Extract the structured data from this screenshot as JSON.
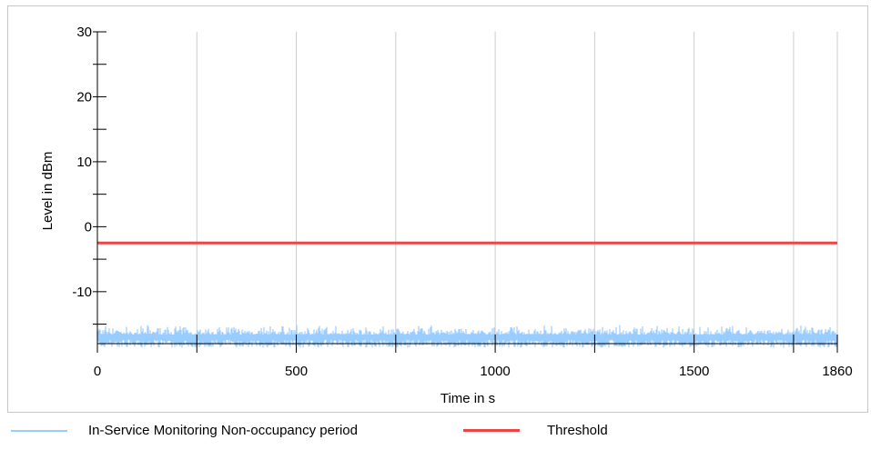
{
  "chart_data": {
    "type": "line",
    "title": "",
    "xlabel": "Time in s",
    "ylabel": "Level in dBm",
    "xlim": [
      0,
      1860
    ],
    "ylim": [
      -18,
      30
    ],
    "x_ticks": [
      0,
      500,
      1000,
      1500,
      1860
    ],
    "x_tick_labels": [
      "0",
      "500",
      "1000",
      "1500",
      "1860"
    ],
    "x_minor_ticks": [
      250,
      750,
      1250,
      1750
    ],
    "y_ticks": [
      30,
      20,
      10,
      0,
      -10
    ],
    "y_tick_labels": [
      "30",
      "20",
      "10",
      "0",
      "-10"
    ],
    "y_minor_ticks": [
      25,
      15,
      5,
      -5,
      -15
    ],
    "grid": true,
    "legend_position": "bottom",
    "series": [
      {
        "name": "In-Service Monitoring Non-occupancy period",
        "color": "#99ccff",
        "style": "noisy band",
        "y_min": -18.2,
        "y_max": -15.5,
        "y_typical": -17.0
      },
      {
        "name": "Threshold",
        "color": "#ee4444",
        "style": "line",
        "x": [
          0,
          1860
        ],
        "values": [
          -2.5,
          -2.5
        ]
      }
    ]
  }
}
